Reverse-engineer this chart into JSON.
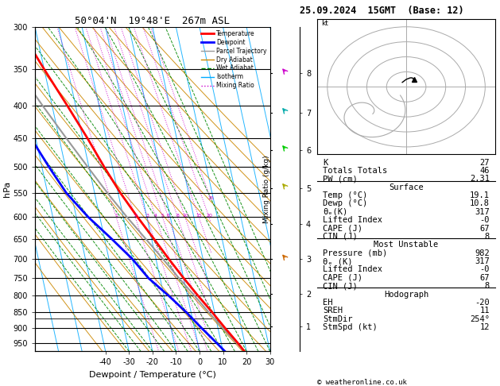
{
  "title_left": "50°04'N  19°48'E  267m ASL",
  "title_right": "25.09.2024  15GMT  (Base: 12)",
  "xlabel": "Dewpoint / Temperature (°C)",
  "ylabel_left": "hPa",
  "legend_entries": [
    {
      "label": "Temperature",
      "color": "#ff0000",
      "lw": 2,
      "ls": "-"
    },
    {
      "label": "Dewpoint",
      "color": "#0000ff",
      "lw": 2,
      "ls": "-"
    },
    {
      "label": "Parcel Trajectory",
      "color": "#999999",
      "lw": 1,
      "ls": "-"
    },
    {
      "label": "Dry Adiabat",
      "color": "#cc8800",
      "lw": 1,
      "ls": "-"
    },
    {
      "label": "Wet Adiabat",
      "color": "#008800",
      "lw": 1,
      "ls": "--"
    },
    {
      "label": "Isotherm",
      "color": "#00aaff",
      "lw": 1,
      "ls": "-"
    },
    {
      "label": "Mixing Ratio",
      "color": "#cc00cc",
      "lw": 1,
      "ls": ":"
    }
  ],
  "stats": {
    "K": 27,
    "Totals_Totals": 46,
    "PW_cm": 2.31,
    "Surface_Temp": 19.1,
    "Surface_Dewp": 10.8,
    "Surface_theta_e": 317,
    "Surface_LI": "-0",
    "Surface_CAPE": 67,
    "Surface_CIN": 8,
    "MU_Pressure": 982,
    "MU_theta_e": 317,
    "MU_LI": "-0",
    "MU_CAPE": 67,
    "MU_CIN": 8,
    "EH": -20,
    "SREH": 11,
    "StmDir": "254°",
    "StmSpd_kt": 12
  },
  "p_min": 300,
  "p_max": 980,
  "x_min": -40,
  "x_max": 35,
  "skew_factor": 30,
  "pressure_ticks": [
    300,
    350,
    400,
    450,
    500,
    550,
    600,
    650,
    700,
    750,
    800,
    850,
    900,
    950
  ],
  "temp_profile_p": [
    980,
    950,
    900,
    850,
    800,
    750,
    700,
    650,
    600,
    550,
    500,
    450,
    400,
    350,
    300
  ],
  "temp_profile_t": [
    19.1,
    17.0,
    13.0,
    9.0,
    4.5,
    0.0,
    -4.5,
    -9.0,
    -14.0,
    -19.0,
    -23.5,
    -28.0,
    -33.5,
    -40.0,
    -47.0
  ],
  "dewp_profile_p": [
    980,
    950,
    900,
    850,
    800,
    750,
    700,
    650,
    600,
    550,
    500,
    450,
    400,
    350,
    300
  ],
  "dewp_profile_t": [
    10.8,
    8.0,
    3.0,
    -2.0,
    -8.0,
    -15.0,
    -20.0,
    -27.0,
    -35.0,
    -42.0,
    -47.0,
    -52.0,
    -56.0,
    -60.0,
    -63.0
  ],
  "parcel_profile_p": [
    980,
    950,
    900,
    850,
    800,
    750,
    700,
    650,
    600,
    550,
    500,
    450,
    400,
    350,
    300
  ],
  "parcel_profile_t": [
    19.1,
    16.5,
    12.0,
    7.5,
    3.0,
    -2.0,
    -7.0,
    -12.5,
    -18.5,
    -24.5,
    -30.5,
    -37.0,
    -44.0,
    -51.5,
    -59.0
  ],
  "lcl_pressure": 870,
  "mixing_ratio_lines": [
    1,
    2,
    3,
    4,
    5,
    6,
    8,
    10,
    15,
    20,
    25
  ],
  "km_ticks": [
    1,
    2,
    3,
    4,
    5,
    6,
    7,
    8
  ],
  "km_pressures": [
    895,
    795,
    700,
    615,
    540,
    470,
    410,
    355
  ],
  "bg_color": "#ffffff",
  "isotherm_color": "#00aaff",
  "dry_adiabat_color": "#cc8800",
  "wet_adiabat_color": "#008800",
  "mixing_ratio_color": "#cc00cc",
  "temp_color": "#ff0000",
  "dewp_color": "#0000ff",
  "parcel_color": "#999999"
}
